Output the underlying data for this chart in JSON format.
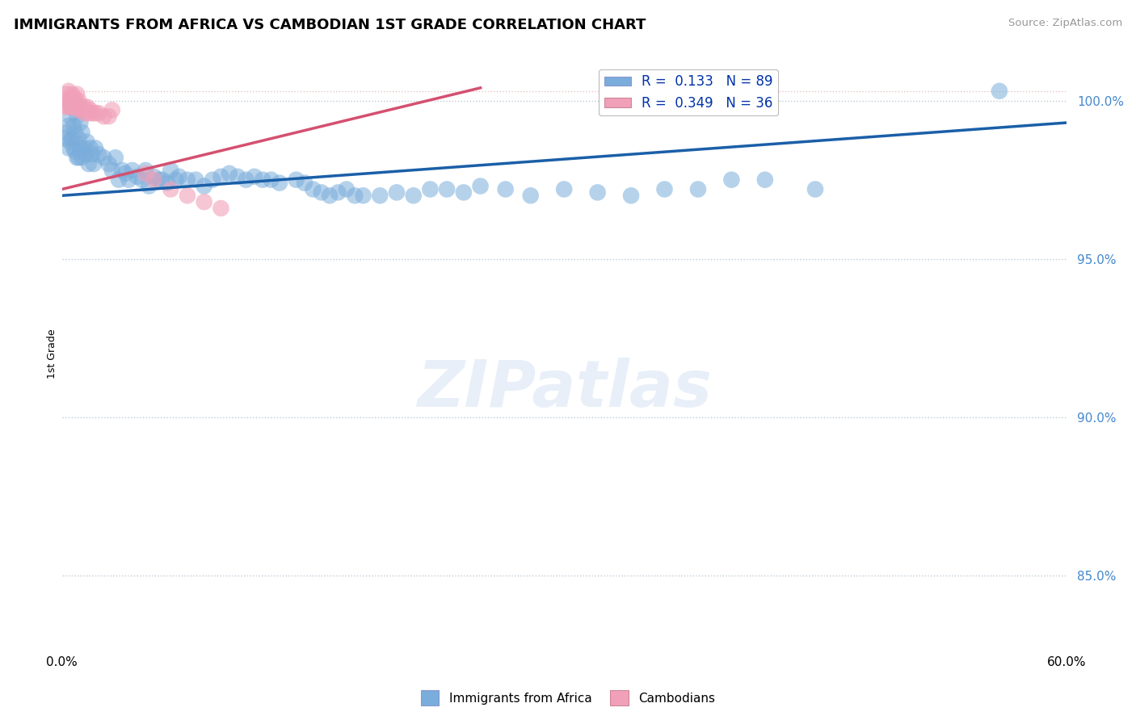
{
  "title": "IMMIGRANTS FROM AFRICA VS CAMBODIAN 1ST GRADE CORRELATION CHART",
  "source": "Source: ZipAtlas.com",
  "ylabel": "1st Grade",
  "xlim": [
    0.0,
    0.6
  ],
  "ylim": [
    0.828,
    1.012
  ],
  "blue_color": "#7aaddb",
  "pink_color": "#f0a0b8",
  "trendline_blue_color": "#1a5fa8",
  "trendline_pink_color": "#d45070",
  "watermark": "ZIPatlas",
  "legend_r1_label": "R =  0.133   N = 89",
  "legend_r2_label": "R =  0.349   N = 36",
  "blue_trendline_x": [
    0.0,
    0.6
  ],
  "blue_trendline_y": [
    0.97,
    0.993
  ],
  "pink_trendline_x": [
    0.0,
    0.25
  ],
  "pink_trendline_y": [
    0.972,
    1.004
  ],
  "blue_x": [
    0.002,
    0.003,
    0.004,
    0.004,
    0.005,
    0.005,
    0.006,
    0.006,
    0.007,
    0.007,
    0.008,
    0.008,
    0.009,
    0.009,
    0.01,
    0.01,
    0.01,
    0.011,
    0.011,
    0.012,
    0.012,
    0.013,
    0.014,
    0.015,
    0.016,
    0.017,
    0.018,
    0.019,
    0.02,
    0.022,
    0.025,
    0.028,
    0.03,
    0.032,
    0.034,
    0.036,
    0.038,
    0.04,
    0.042,
    0.045,
    0.048,
    0.05,
    0.052,
    0.055,
    0.058,
    0.06,
    0.063,
    0.065,
    0.068,
    0.07,
    0.075,
    0.08,
    0.085,
    0.09,
    0.095,
    0.1,
    0.105,
    0.11,
    0.115,
    0.12,
    0.125,
    0.13,
    0.14,
    0.145,
    0.15,
    0.155,
    0.16,
    0.165,
    0.17,
    0.175,
    0.18,
    0.19,
    0.2,
    0.21,
    0.22,
    0.23,
    0.24,
    0.25,
    0.265,
    0.28,
    0.3,
    0.32,
    0.34,
    0.36,
    0.38,
    0.4,
    0.42,
    0.45,
    0.56
  ],
  "blue_y": [
    0.988,
    0.99,
    0.985,
    0.992,
    0.987,
    0.995,
    0.988,
    0.998,
    0.985,
    0.992,
    0.984,
    0.99,
    0.982,
    0.995,
    0.982,
    0.988,
    0.998,
    0.985,
    0.993,
    0.982,
    0.99,
    0.985,
    0.983,
    0.987,
    0.98,
    0.985,
    0.983,
    0.98,
    0.985,
    0.983,
    0.982,
    0.98,
    0.978,
    0.982,
    0.975,
    0.978,
    0.977,
    0.975,
    0.978,
    0.976,
    0.975,
    0.978,
    0.973,
    0.976,
    0.975,
    0.975,
    0.974,
    0.978,
    0.975,
    0.976,
    0.975,
    0.975,
    0.973,
    0.975,
    0.976,
    0.977,
    0.976,
    0.975,
    0.976,
    0.975,
    0.975,
    0.974,
    0.975,
    0.974,
    0.972,
    0.971,
    0.97,
    0.971,
    0.972,
    0.97,
    0.97,
    0.97,
    0.971,
    0.97,
    0.972,
    0.972,
    0.971,
    0.973,
    0.972,
    0.97,
    0.972,
    0.971,
    0.97,
    0.972,
    0.972,
    0.975,
    0.975,
    0.972,
    1.003
  ],
  "pink_x": [
    0.002,
    0.003,
    0.003,
    0.004,
    0.004,
    0.005,
    0.005,
    0.006,
    0.006,
    0.007,
    0.007,
    0.008,
    0.008,
    0.009,
    0.009,
    0.01,
    0.01,
    0.011,
    0.012,
    0.013,
    0.014,
    0.015,
    0.016,
    0.017,
    0.018,
    0.02,
    0.022,
    0.025,
    0.028,
    0.03,
    0.05,
    0.055,
    0.065,
    0.075,
    0.085,
    0.095
  ],
  "pink_y": [
    0.998,
    1.0,
    1.002,
    0.998,
    1.003,
    1.0,
    0.998,
    1.002,
    1.0,
    0.998,
    1.001,
    0.998,
    1.0,
    1.002,
    0.998,
    1.0,
    0.997,
    0.998,
    0.997,
    0.998,
    0.996,
    0.998,
    0.996,
    0.997,
    0.996,
    0.996,
    0.996,
    0.995,
    0.995,
    0.997,
    0.977,
    0.975,
    0.972,
    0.97,
    0.968,
    0.966
  ]
}
